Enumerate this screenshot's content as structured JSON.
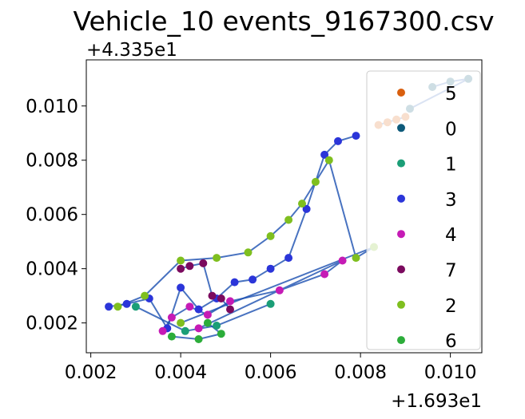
{
  "chart_data": {
    "type": "scatter",
    "title": "Vehicle_10 events_9167300.csv",
    "xlabel": "",
    "ylabel": "",
    "x_offset_label": "+1.693e1",
    "y_offset_label": "+4.335e1",
    "x_offset": 16.93,
    "y_offset": 43.35,
    "xlim": [
      0.0019,
      0.0107
    ],
    "ylim": [
      0.0009,
      0.0117
    ],
    "x_ticks": [
      0.002,
      0.004,
      0.006,
      0.008,
      0.01
    ],
    "x_tick_labels": [
      "0.002",
      "0.004",
      "0.006",
      "0.008",
      "0.010"
    ],
    "y_ticks": [
      0.002,
      0.004,
      0.006,
      0.008,
      0.01
    ],
    "y_tick_labels": [
      "0.002",
      "0.004",
      "0.006",
      "0.008",
      "0.010"
    ],
    "grid": false,
    "legend_position": "right",
    "trajectory_color": "#1a4fb0",
    "series": [
      {
        "name": "5",
        "color": "#d95f0e",
        "points": [
          [
            0.0084,
            0.0093
          ],
          [
            0.0086,
            0.0094
          ],
          [
            0.0088,
            0.0095
          ],
          [
            0.009,
            0.0096
          ]
        ]
      },
      {
        "name": "0",
        "color": "#0e5a7a",
        "points": [
          [
            0.0096,
            0.0107
          ],
          [
            0.01,
            0.0109
          ],
          [
            0.0104,
            0.011
          ],
          [
            0.0091,
            0.0099
          ]
        ]
      },
      {
        "name": "1",
        "color": "#1b9e77",
        "points": [
          [
            0.003,
            0.0026
          ],
          [
            0.0041,
            0.0017
          ],
          [
            0.0048,
            0.0019
          ],
          [
            0.006,
            0.0027
          ]
        ]
      },
      {
        "name": "3",
        "color": "#2b35d9",
        "points": [
          [
            0.0024,
            0.0026
          ],
          [
            0.0028,
            0.0027
          ],
          [
            0.0033,
            0.0029
          ],
          [
            0.0037,
            0.0018
          ],
          [
            0.004,
            0.0033
          ],
          [
            0.0044,
            0.0025
          ],
          [
            0.0048,
            0.0029
          ],
          [
            0.0052,
            0.0035
          ],
          [
            0.0056,
            0.0036
          ],
          [
            0.006,
            0.004
          ],
          [
            0.0064,
            0.0044
          ],
          [
            0.0068,
            0.0062
          ],
          [
            0.0072,
            0.0082
          ],
          [
            0.0075,
            0.0087
          ],
          [
            0.0079,
            0.0089
          ]
        ]
      },
      {
        "name": "4",
        "color": "#c51bb5",
        "points": [
          [
            0.0036,
            0.0017
          ],
          [
            0.0038,
            0.0022
          ],
          [
            0.0042,
            0.0026
          ],
          [
            0.0046,
            0.0023
          ],
          [
            0.0051,
            0.0028
          ],
          [
            0.0062,
            0.0032
          ],
          [
            0.0072,
            0.0038
          ],
          [
            0.0076,
            0.0043
          ],
          [
            0.0044,
            0.0018
          ]
        ]
      },
      {
        "name": "7",
        "color": "#7b0a5e",
        "points": [
          [
            0.004,
            0.004
          ],
          [
            0.0042,
            0.0041
          ],
          [
            0.0045,
            0.0042
          ],
          [
            0.0047,
            0.003
          ],
          [
            0.0049,
            0.0029
          ],
          [
            0.0051,
            0.0025
          ]
        ]
      },
      {
        "name": "2",
        "color": "#7fbf1f",
        "points": [
          [
            0.0026,
            0.0026
          ],
          [
            0.0032,
            0.003
          ],
          [
            0.004,
            0.0043
          ],
          [
            0.0048,
            0.0044
          ],
          [
            0.0055,
            0.0046
          ],
          [
            0.006,
            0.0052
          ],
          [
            0.0064,
            0.0058
          ],
          [
            0.0067,
            0.0064
          ],
          [
            0.007,
            0.0072
          ],
          [
            0.0073,
            0.008
          ],
          [
            0.0079,
            0.0044
          ],
          [
            0.0083,
            0.0048
          ],
          [
            0.004,
            0.002
          ]
        ]
      },
      {
        "name": "6",
        "color": "#2cad3a",
        "points": [
          [
            0.0038,
            0.0015
          ],
          [
            0.0044,
            0.0014
          ],
          [
            0.0049,
            0.0016
          ],
          [
            0.0046,
            0.002
          ]
        ]
      }
    ]
  }
}
